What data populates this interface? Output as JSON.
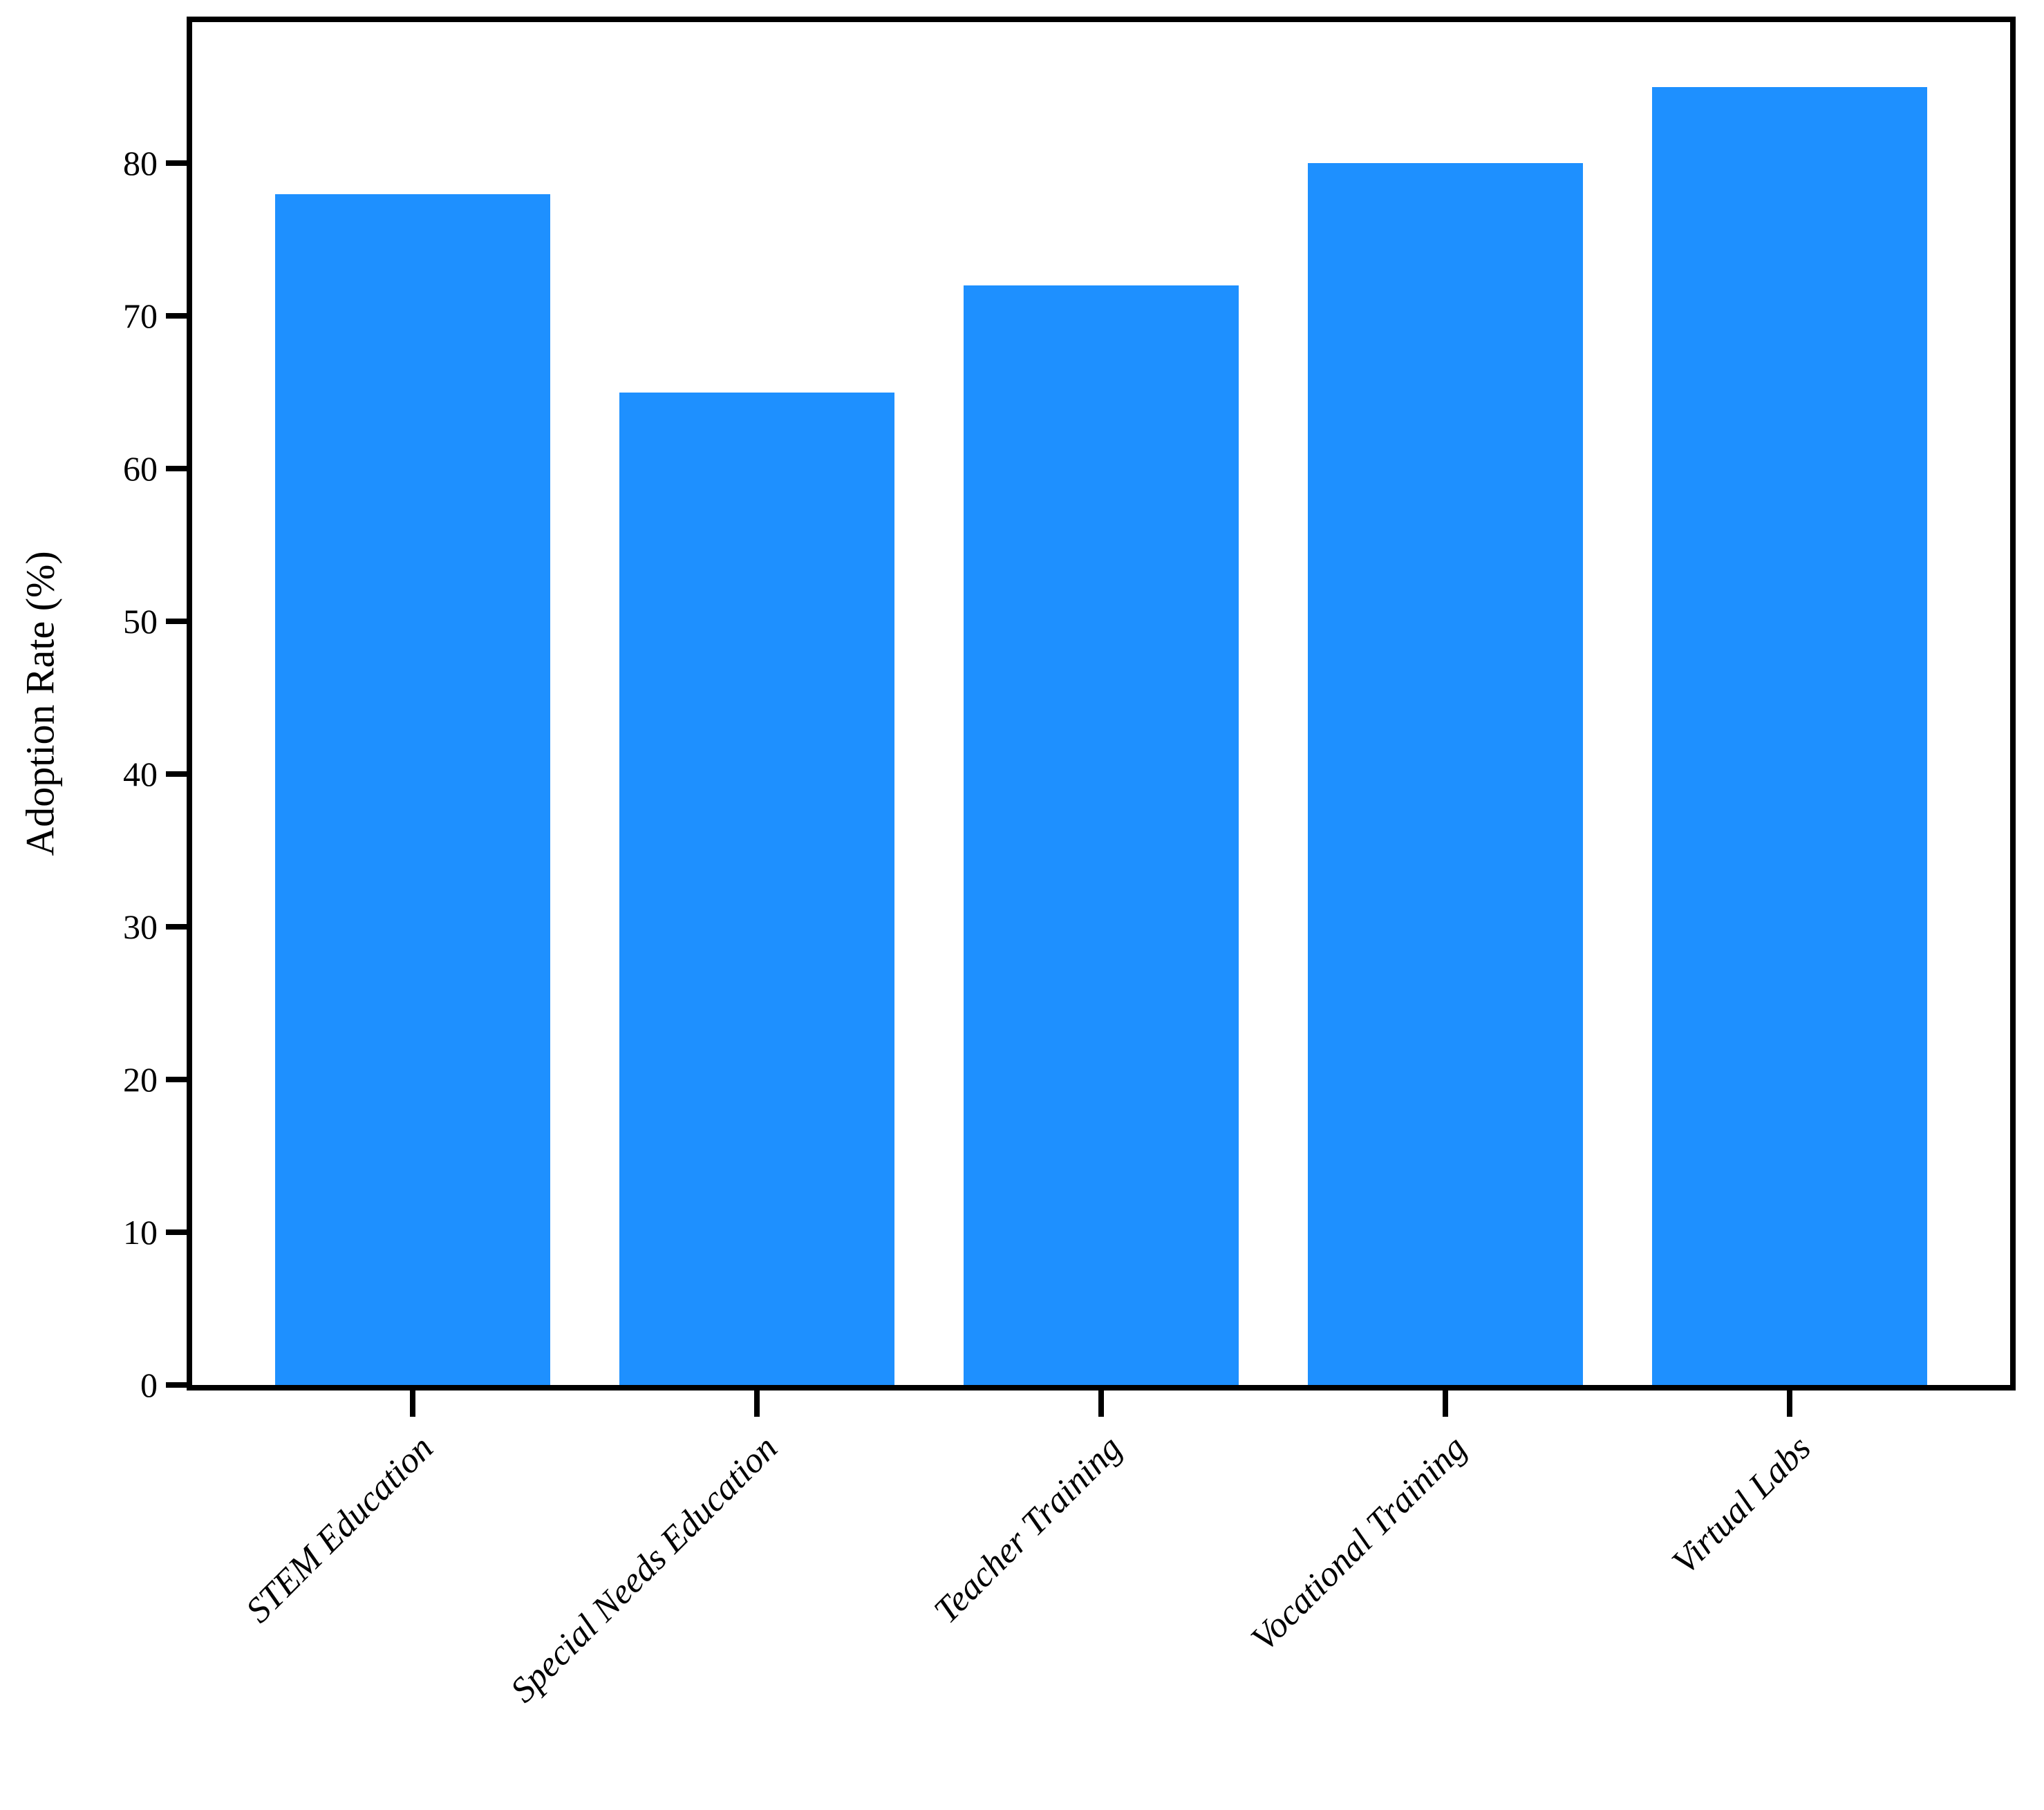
{
  "chart_data": {
    "type": "bar",
    "title": "",
    "xlabel": "",
    "ylabel": "Adoption Rate (%)",
    "categories": [
      "STEM Education",
      "Special Needs Education",
      "Teacher Training",
      "Vocational Training",
      "Virtual Labs"
    ],
    "values": [
      78,
      65,
      72,
      80,
      85
    ],
    "yticks": [
      0,
      10,
      20,
      30,
      40,
      50,
      60,
      70,
      80
    ],
    "ylim": [
      0,
      89.25
    ],
    "bar_color": "#1E90FF",
    "axis_color": "#000000",
    "background_color": "#ffffff",
    "grid": false,
    "legend_position": "none",
    "bar_width_fraction": 0.8,
    "x_tick_rotation_deg": 45
  }
}
